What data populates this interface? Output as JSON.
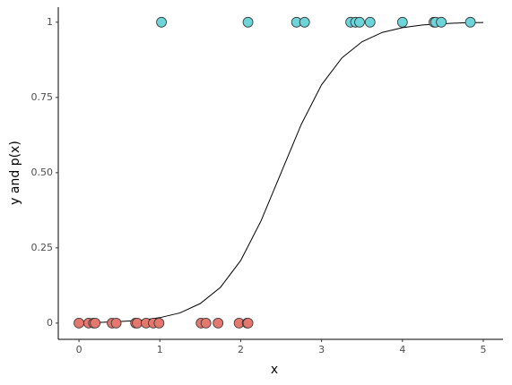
{
  "chart_data": {
    "type": "scatter",
    "x_label": "x",
    "y_label": "y and p(x)",
    "xlim": [
      -0.256,
      5.244
    ],
    "ylim": [
      -0.054,
      1.05
    ],
    "xticks": [
      0,
      1,
      2,
      3,
      4,
      5
    ],
    "yticks": [
      0,
      0.25,
      {
        "value": 0.5,
        "label": "0.50"
      },
      0.75,
      1
    ],
    "points": [
      {
        "color": "#e4776e",
        "x": [
          0,
          0.12,
          0.18,
          0.2,
          0.41,
          0.46,
          0.7,
          0.72,
          0.83,
          0.92,
          0.99,
          1.51,
          1.57,
          1.72,
          1.98,
          2.08,
          2.09
        ],
        "values": [
          0,
          0,
          0,
          0,
          0,
          0,
          0,
          0,
          0,
          0,
          0,
          0,
          0,
          0,
          0,
          0,
          0
        ]
      },
      {
        "color": "#6dd4d9",
        "x": [
          1.02,
          2.09,
          2.69,
          2.79,
          3.36,
          3.42,
          3.47,
          3.6,
          4.0,
          4.39,
          4.41,
          4.48,
          4.84
        ],
        "values": [
          1,
          1,
          1,
          1,
          1,
          1,
          1,
          1,
          1,
          1,
          1,
          1,
          1
        ]
      }
    ],
    "curve": {
      "color": "#000000",
      "x": [
        0,
        0.25,
        0.5,
        0.75,
        1,
        1.25,
        1.5,
        1.75,
        2,
        2.25,
        2.5,
        2.75,
        3,
        3.25,
        3.5,
        3.75,
        4,
        4.25,
        4.5,
        4.75,
        5
      ],
      "values": [
        0.001,
        0.002,
        0.005,
        0.009,
        0.018,
        0.034,
        0.065,
        0.119,
        0.208,
        0.339,
        0.5,
        0.661,
        0.792,
        0.881,
        0.935,
        0.966,
        0.982,
        0.991,
        0.995,
        0.998,
        0.999
      ]
    }
  }
}
